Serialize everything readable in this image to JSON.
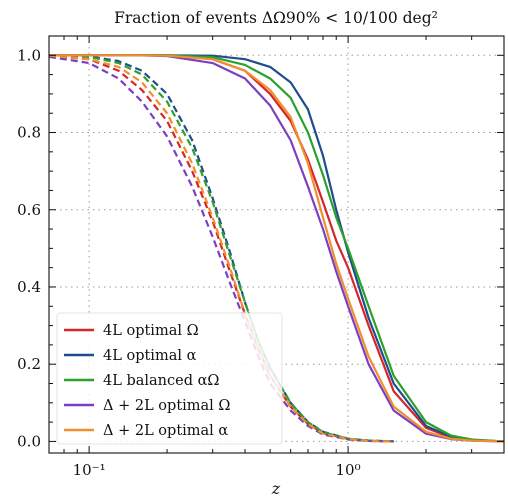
{
  "chart_data": {
    "type": "line",
    "title": "Fraction of events ΔΩ90% < 10/100 deg²",
    "xlabel": "z",
    "ylabel": "",
    "xscale": "log",
    "xlim": [
      0.07,
      4.0
    ],
    "ylim": [
      -0.03,
      1.05
    ],
    "xticks": [
      {
        "value": 0.1,
        "label": "10⁻¹"
      },
      {
        "value": 1.0,
        "label": "10⁰"
      }
    ],
    "yticks": [
      {
        "value": 0.0,
        "label": "0.0"
      },
      {
        "value": 0.2,
        "label": "0.2"
      },
      {
        "value": 0.4,
        "label": "0.4"
      },
      {
        "value": 0.6,
        "label": "0.6"
      },
      {
        "value": 0.8,
        "label": "0.8"
      },
      {
        "value": 1.0,
        "label": "1.0"
      }
    ],
    "grid": true,
    "legend_position": "lower-left",
    "solid_style_meaning": "",
    "series": [
      {
        "name": "4L optimal Ω",
        "color": "#d62728",
        "solid": {
          "x": [
            0.07,
            0.1,
            0.15,
            0.2,
            0.3,
            0.4,
            0.5,
            0.6,
            0.7,
            0.8,
            0.9,
            1.0,
            1.2,
            1.5,
            2.0,
            2.5,
            3.0,
            4.0
          ],
          "y": [
            1.0,
            1.0,
            1.0,
            1.0,
            0.99,
            0.96,
            0.9,
            0.83,
            0.73,
            0.62,
            0.52,
            0.45,
            0.3,
            0.13,
            0.035,
            0.01,
            0.003,
            0.0
          ]
        },
        "dashed": {
          "x": [
            0.07,
            0.1,
            0.13,
            0.16,
            0.2,
            0.25,
            0.3,
            0.35,
            0.4,
            0.45,
            0.5,
            0.6,
            0.7,
            0.8,
            1.0,
            1.2,
            1.5
          ],
          "y": [
            0.998,
            0.99,
            0.96,
            0.91,
            0.83,
            0.7,
            0.57,
            0.44,
            0.33,
            0.24,
            0.17,
            0.09,
            0.045,
            0.022,
            0.006,
            0.002,
            0.0
          ]
        }
      },
      {
        "name": "4L optimal α",
        "color": "#1f4e8c",
        "solid": {
          "x": [
            0.07,
            0.1,
            0.15,
            0.2,
            0.3,
            0.4,
            0.5,
            0.6,
            0.7,
            0.8,
            0.9,
            1.0,
            1.2,
            1.5,
            2.0,
            2.5,
            3.0,
            4.0
          ],
          "y": [
            1.0,
            1.0,
            1.0,
            1.0,
            0.999,
            0.99,
            0.97,
            0.93,
            0.86,
            0.74,
            0.6,
            0.49,
            0.32,
            0.15,
            0.04,
            0.012,
            0.004,
            0.0
          ]
        },
        "dashed": {
          "x": [
            0.07,
            0.1,
            0.13,
            0.16,
            0.2,
            0.25,
            0.3,
            0.35,
            0.4,
            0.45,
            0.5,
            0.6,
            0.7,
            0.8,
            1.0,
            1.2,
            1.5
          ],
          "y": [
            1.0,
            0.997,
            0.985,
            0.96,
            0.9,
            0.78,
            0.63,
            0.49,
            0.36,
            0.26,
            0.19,
            0.1,
            0.05,
            0.025,
            0.007,
            0.002,
            0.0
          ]
        }
      },
      {
        "name": "4L balanced αΩ",
        "color": "#2ca02c",
        "solid": {
          "x": [
            0.07,
            0.1,
            0.15,
            0.2,
            0.3,
            0.4,
            0.5,
            0.6,
            0.7,
            0.8,
            0.9,
            1.0,
            1.2,
            1.5,
            2.0,
            2.5,
            3.0,
            4.0
          ],
          "y": [
            1.0,
            1.0,
            1.0,
            1.0,
            0.995,
            0.975,
            0.94,
            0.89,
            0.8,
            0.69,
            0.58,
            0.5,
            0.35,
            0.17,
            0.05,
            0.015,
            0.005,
            0.0
          ]
        },
        "dashed": {
          "x": [
            0.07,
            0.1,
            0.13,
            0.16,
            0.2,
            0.25,
            0.3,
            0.35,
            0.4,
            0.45,
            0.5,
            0.6,
            0.7,
            0.8,
            1.0,
            1.2,
            1.5
          ],
          "y": [
            1.0,
            0.996,
            0.98,
            0.95,
            0.88,
            0.76,
            0.62,
            0.48,
            0.36,
            0.26,
            0.19,
            0.1,
            0.05,
            0.024,
            0.007,
            0.002,
            0.0
          ]
        }
      },
      {
        "name": "Δ + 2L optimal Ω",
        "color": "#7b3fc4",
        "solid": {
          "x": [
            0.07,
            0.1,
            0.15,
            0.2,
            0.3,
            0.4,
            0.5,
            0.6,
            0.7,
            0.8,
            0.9,
            1.0,
            1.2,
            1.5,
            2.0,
            2.5,
            3.0,
            4.0
          ],
          "y": [
            1.0,
            1.0,
            1.0,
            0.998,
            0.98,
            0.94,
            0.87,
            0.78,
            0.66,
            0.55,
            0.44,
            0.35,
            0.2,
            0.08,
            0.02,
            0.006,
            0.002,
            0.0
          ]
        },
        "dashed": {
          "x": [
            0.07,
            0.1,
            0.13,
            0.16,
            0.2,
            0.25,
            0.3,
            0.35,
            0.4,
            0.45,
            0.5,
            0.6,
            0.7,
            0.8,
            1.0,
            1.2,
            1.5
          ],
          "y": [
            0.996,
            0.98,
            0.94,
            0.88,
            0.79,
            0.66,
            0.53,
            0.41,
            0.31,
            0.22,
            0.15,
            0.08,
            0.04,
            0.018,
            0.005,
            0.001,
            0.0
          ]
        }
      },
      {
        "name": "Δ + 2L optimal α",
        "color": "#f28e2b",
        "solid": {
          "x": [
            0.07,
            0.1,
            0.15,
            0.2,
            0.3,
            0.4,
            0.5,
            0.6,
            0.7,
            0.8,
            0.9,
            1.0,
            1.2,
            1.5,
            2.0,
            2.5,
            3.0,
            4.0
          ],
          "y": [
            1.0,
            1.0,
            1.0,
            0.999,
            0.99,
            0.96,
            0.91,
            0.84,
            0.72,
            0.58,
            0.46,
            0.37,
            0.22,
            0.09,
            0.025,
            0.007,
            0.002,
            0.0
          ]
        },
        "dashed": {
          "x": [
            0.07,
            0.1,
            0.13,
            0.16,
            0.2,
            0.25,
            0.3,
            0.35,
            0.4,
            0.45,
            0.5,
            0.6,
            0.7,
            0.8,
            1.0,
            1.2,
            1.5
          ],
          "y": [
            0.999,
            0.99,
            0.97,
            0.93,
            0.85,
            0.72,
            0.58,
            0.45,
            0.33,
            0.24,
            0.17,
            0.09,
            0.045,
            0.02,
            0.006,
            0.001,
            0.0
          ]
        }
      }
    ]
  }
}
